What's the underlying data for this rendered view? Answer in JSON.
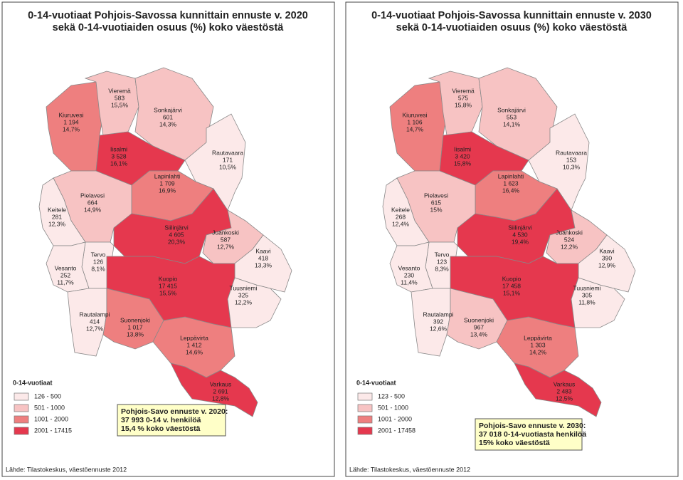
{
  "panels": [
    {
      "title": [
        "0-14-vuotiaat Pohjois-Savossa kunnittain ennuste v. 2020",
        "sekä 0-14-vuotiaiden osuus (%) koko väestöstä"
      ],
      "municipalities": [
        {
          "name": "Kiuruvesi",
          "count": "1 194",
          "pct": "14,7%",
          "color": "#ee7f7f"
        },
        {
          "name": "Vieremä",
          "count": "583",
          "pct": "15,5%",
          "color": "#f7c3c3"
        },
        {
          "name": "Sonkajärvi",
          "count": "601",
          "pct": "14,3%",
          "color": "#f7c3c3"
        },
        {
          "name": "Iisalmi",
          "count": "3 528",
          "pct": "16,1%",
          "color": "#e5384e"
        },
        {
          "name": "Rautavaara",
          "count": "171",
          "pct": "10,5%",
          "color": "#fce9e9"
        },
        {
          "name": "Lapinlahti",
          "count": "1 709",
          "pct": "16,9%",
          "color": "#ee7f7f"
        },
        {
          "name": "Pielavesi",
          "count": "664",
          "pct": "14,9%",
          "color": "#f7c3c3"
        },
        {
          "name": "Keitele",
          "count": "281",
          "pct": "12,3%",
          "color": "#fce9e9"
        },
        {
          "name": "Siilinjärvi",
          "count": "4 605",
          "pct": "20,3%",
          "color": "#e5384e"
        },
        {
          "name": "Juankoski",
          "count": "587",
          "pct": "12,7%",
          "color": "#f7c3c3"
        },
        {
          "name": "Kaavi",
          "count": "418",
          "pct": "13,3%",
          "color": "#fce9e9"
        },
        {
          "name": "Tervo",
          "count": "126",
          "pct": "8,1%",
          "color": "#fce9e9"
        },
        {
          "name": "Vesanto",
          "count": "252",
          "pct": "11,7%",
          "color": "#fce9e9"
        },
        {
          "name": "Kuopio",
          "count": "17 415",
          "pct": "15,5%",
          "color": "#e5384e"
        },
        {
          "name": "Tuusniemi",
          "count": "325",
          "pct": "12,2%",
          "color": "#fce9e9"
        },
        {
          "name": "Rautalampi",
          "count": "414",
          "pct": "12,7%",
          "color": "#fce9e9"
        },
        {
          "name": "Suonenjoki",
          "count": "1 017",
          "pct": "13,8%",
          "color": "#ee7f7f"
        },
        {
          "name": "Leppävirta",
          "count": "1 412",
          "pct": "14,6%",
          "color": "#ee7f7f"
        },
        {
          "name": "Varkaus",
          "count": "2 691",
          "pct": "12,8%",
          "color": "#e5384e"
        }
      ],
      "legend": {
        "title": "0-14-vuotiaat",
        "items": [
          {
            "label": "126 - 500",
            "color": "#fce9e9"
          },
          {
            "label": "501 - 1000",
            "color": "#f7c3c3"
          },
          {
            "label": "1001 - 2000",
            "color": "#ee7f7f"
          },
          {
            "label": "2001 - 17415",
            "color": "#e5384e"
          }
        ]
      },
      "summary": [
        "Pohjois-Savo ennuste v. 2020:",
        "37 993 0-14 v. henkilöä",
        "15,4 % koko väestöstä"
      ],
      "source": "Lähde: Tilastokeskus, väestöennuste 2012"
    },
    {
      "title": [
        "0-14-vuotiaat Pohjois-Savossa kunnittain ennuste v. 2030",
        "sekä 0-14-vuotiaiden osuus (%) koko väestöstä"
      ],
      "municipalities": [
        {
          "name": "Kiuruvesi",
          "count": "1 106",
          "pct": "14,7%",
          "color": "#ee7f7f"
        },
        {
          "name": "Vieremä",
          "count": "575",
          "pct": "15,8%",
          "color": "#f7c3c3"
        },
        {
          "name": "Sonkajärvi",
          "count": "553",
          "pct": "14,1%",
          "color": "#f7c3c3"
        },
        {
          "name": "Iisalmi",
          "count": "3 420",
          "pct": "15,8%",
          "color": "#e5384e"
        },
        {
          "name": "Rautavaara",
          "count": "153",
          "pct": "10,3%",
          "color": "#fce9e9"
        },
        {
          "name": "Lapinlahti",
          "count": "1 623",
          "pct": "16,4%",
          "color": "#ee7f7f"
        },
        {
          "name": "Pielavesi",
          "count": "615",
          "pct": "15%",
          "color": "#f7c3c3"
        },
        {
          "name": "Keitele",
          "count": "268",
          "pct": "12,4%",
          "color": "#fce9e9"
        },
        {
          "name": "Siilinjärvi",
          "count": "4 530",
          "pct": "19,4%",
          "color": "#e5384e"
        },
        {
          "name": "Juankoski",
          "count": "524",
          "pct": "12,2%",
          "color": "#f7c3c3"
        },
        {
          "name": "Kaavi",
          "count": "390",
          "pct": "12,9%",
          "color": "#fce9e9"
        },
        {
          "name": "Tervo",
          "count": "123",
          "pct": "8,3%",
          "color": "#fce9e9"
        },
        {
          "name": "Vesanto",
          "count": "230",
          "pct": "11,4%",
          "color": "#fce9e9"
        },
        {
          "name": "Kuopio",
          "count": "17 458",
          "pct": "15,1%",
          "color": "#e5384e"
        },
        {
          "name": "Tuusniemi",
          "count": "305",
          "pct": "11,8%",
          "color": "#fce9e9"
        },
        {
          "name": "Rautalampi",
          "count": "392",
          "pct": "12,6%",
          "color": "#fce9e9"
        },
        {
          "name": "Suonenjoki",
          "count": "967",
          "pct": "13,4%",
          "color": "#f7c3c3"
        },
        {
          "name": "Leppävirta",
          "count": "1 303",
          "pct": "14,2%",
          "color": "#ee7f7f"
        },
        {
          "name": "Varkaus",
          "count": "2 483",
          "pct": "12,5%",
          "color": "#e5384e"
        }
      ],
      "legend": {
        "title": "0-14-vuotiaat",
        "items": [
          {
            "label": "123 - 500",
            "color": "#fce9e9"
          },
          {
            "label": "501 - 1000",
            "color": "#f7c3c3"
          },
          {
            "label": "1001 - 2000",
            "color": "#ee7f7f"
          },
          {
            "label": "2001 - 17458",
            "color": "#e5384e"
          }
        ]
      },
      "summary": [
        "Pohjois-Savo ennuste v. 2030:",
        "37 018 0-14-vuotiasta henkilöä",
        "15% koko väestöstä"
      ],
      "source": "Lähde: Tilastokeskus, väestöennuste 2012"
    }
  ]
}
